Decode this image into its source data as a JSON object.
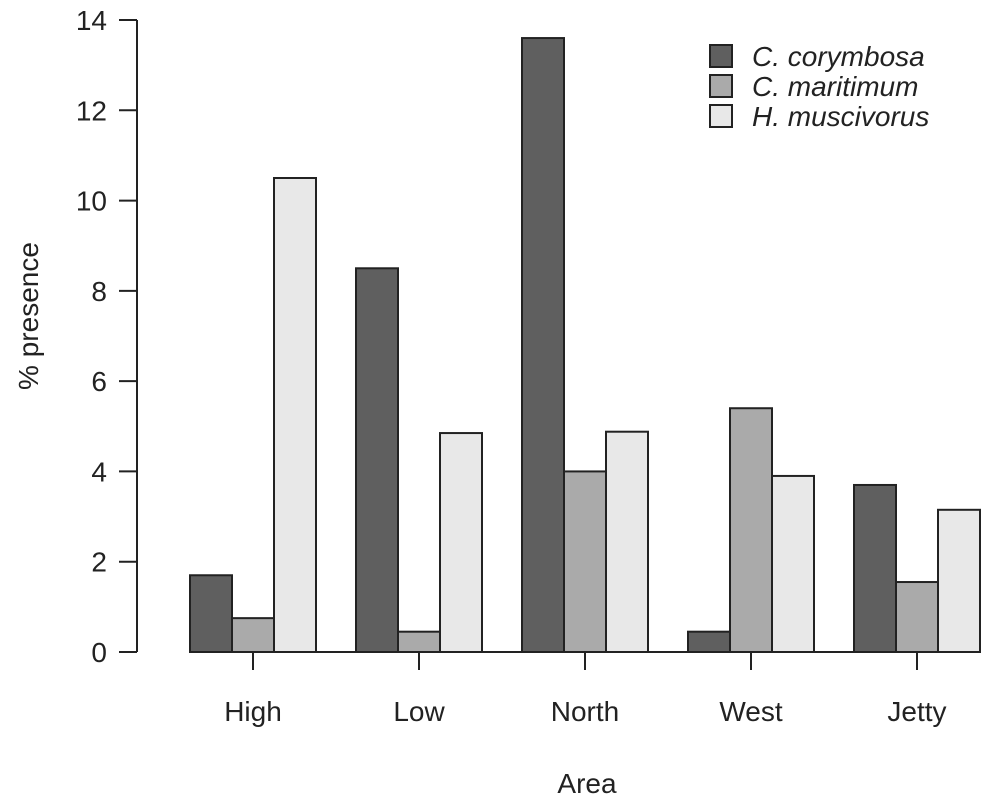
{
  "chart_data": {
    "type": "bar",
    "categories": [
      "High",
      "Low",
      "North",
      "West",
      "Jetty"
    ],
    "series": [
      {
        "name": "C. corymbosa",
        "values": [
          1.7,
          8.5,
          13.6,
          0.45,
          3.7
        ],
        "color": "#5f5f5f"
      },
      {
        "name": "C. maritimum",
        "values": [
          0.75,
          0.45,
          4.0,
          5.4,
          1.55
        ],
        "color": "#aaaaaa"
      },
      {
        "name": "H. muscivorus",
        "values": [
          10.5,
          4.85,
          4.88,
          3.9,
          3.15
        ],
        "color": "#e8e8e8"
      }
    ],
    "title": "",
    "xlabel": "Area",
    "ylabel": "% presence",
    "ylim": [
      0,
      14
    ],
    "yticks": [
      0,
      2,
      4,
      6,
      8,
      10,
      12,
      14
    ],
    "grid": false,
    "legend_position": "top-right",
    "bar_outline_color": "#222222"
  }
}
